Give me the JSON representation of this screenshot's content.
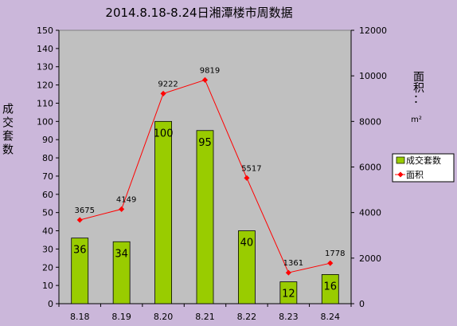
{
  "chart_data": {
    "type": "bar",
    "title": "2014.8.18-8.24日湘潭楼市周数据",
    "categories": [
      "8.18",
      "8.19",
      "8.20",
      "8.21",
      "8.22",
      "8.23",
      "8.24"
    ],
    "series": [
      {
        "name": "成交套数",
        "type": "bar",
        "axis": "left",
        "color": "#99cc00",
        "values": [
          36,
          34,
          100,
          95,
          40,
          12,
          16
        ]
      },
      {
        "name": "面积",
        "type": "line",
        "axis": "right",
        "color": "#ff0000",
        "values": [
          3675,
          4149,
          9222,
          9819,
          5517,
          1361,
          1778
        ]
      }
    ],
    "ylabel": "成交套数",
    "ylabel_right": "面积：",
    "ylabel_right_unit": "m²",
    "ylim": [
      0,
      150
    ],
    "yticks": [
      0,
      10,
      20,
      30,
      40,
      50,
      60,
      70,
      80,
      90,
      100,
      110,
      120,
      130,
      140,
      150
    ],
    "ylim_right": [
      0,
      12000
    ],
    "yticks_right": [
      0,
      2000,
      4000,
      6000,
      8000,
      10000,
      12000
    ],
    "grid": false,
    "legend": "right"
  }
}
